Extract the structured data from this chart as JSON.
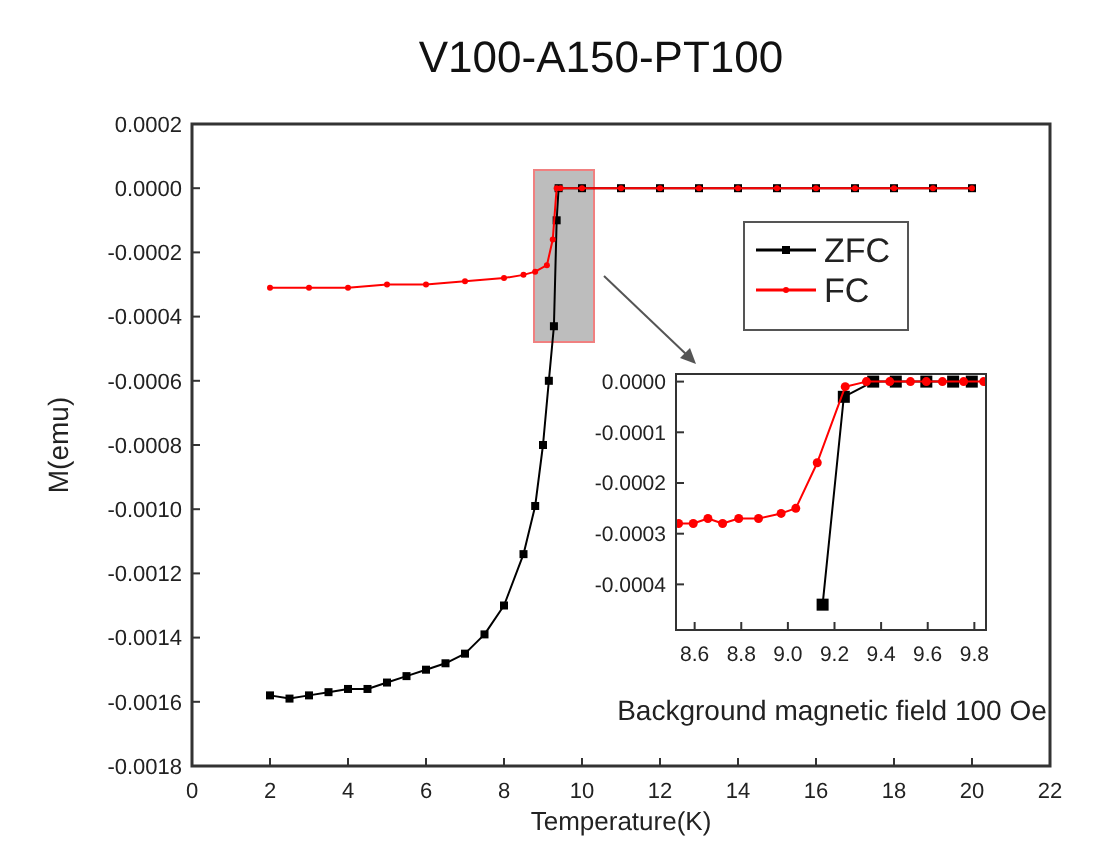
{
  "chart_data": [
    {
      "type": "line",
      "title": "V100-A150-PT100",
      "xlabel": "Temperature(K)",
      "ylabel": "M(emu)",
      "xlim": [
        0,
        22
      ],
      "xticks": [
        0,
        2,
        4,
        6,
        8,
        10,
        12,
        14,
        16,
        18,
        20,
        22
      ],
      "ylim": [
        -0.0018,
        0.0002
      ],
      "yticks": [
        {
          "value": -0.0018,
          "label": "-0.0018"
        },
        {
          "value": -0.0016,
          "label": "-0.0016"
        },
        {
          "value": -0.0014,
          "label": "-0.0014"
        },
        {
          "value": -0.0012,
          "label": "-0.0012"
        },
        {
          "value": -0.001,
          "label": "-0.0010"
        },
        {
          "value": -0.0008,
          "label": "-0.0008"
        },
        {
          "value": -0.0006,
          "label": "-0.0006"
        },
        {
          "value": -0.0004,
          "label": "-0.0004"
        },
        {
          "value": -0.0002,
          "label": "-0.0002"
        },
        {
          "value": 0,
          "label": "0.0000"
        },
        {
          "value": 0.0002,
          "label": "0.0002"
        }
      ],
      "legend": "top right",
      "annotations": [
        "Background magnetic field 100 Oe"
      ],
      "series": [
        {
          "name": "ZFC",
          "color": "#000000",
          "marker": "square",
          "x": [
            2,
            2.5,
            3,
            3.5,
            4,
            4.5,
            5,
            5.5,
            6,
            6.5,
            7,
            7.5,
            8,
            8.5,
            8.8,
            9.0,
            9.15,
            9.28,
            9.35,
            9.4,
            10,
            11,
            12,
            13,
            14,
            15,
            16,
            17,
            18,
            19,
            20
          ],
          "values": [
            -0.00158,
            -0.00159,
            -0.00158,
            -0.00157,
            -0.00156,
            -0.00156,
            -0.00154,
            -0.00152,
            -0.0015,
            -0.00148,
            -0.00145,
            -0.00139,
            -0.0013,
            -0.00114,
            -0.00099,
            -0.0008,
            -0.0006,
            -0.00043,
            -0.0001,
            0,
            0,
            0,
            0,
            0,
            0,
            0,
            0,
            0,
            0,
            0,
            0
          ]
        },
        {
          "name": "FC",
          "color": "#ff0000",
          "marker": "circle",
          "x": [
            2,
            3,
            4,
            5,
            6,
            7,
            8,
            8.5,
            8.8,
            9.1,
            9.25,
            9.35,
            9.45,
            10,
            11,
            12,
            13,
            14,
            15,
            16,
            17,
            18,
            19,
            20
          ],
          "values": [
            -0.00031,
            -0.00031,
            -0.00031,
            -0.0003,
            -0.0003,
            -0.00029,
            -0.00028,
            -0.00027,
            -0.00026,
            -0.00024,
            -0.00016,
            0,
            0,
            0,
            0,
            0,
            0,
            0,
            0,
            0,
            0,
            0,
            0,
            0
          ]
        }
      ]
    },
    {
      "type": "line",
      "xlim": [
        8.52,
        9.85
      ],
      "xticks": [
        8.6,
        8.8,
        {
          "value": 9.0,
          "label": "9.0"
        },
        9.2,
        9.4,
        9.6,
        9.8
      ],
      "ylim": [
        -0.00049,
        1.5e-05
      ],
      "yticks": [
        {
          "value": -0.0004,
          "label": "-0.0004"
        },
        {
          "value": -0.0003,
          "label": "-0.0003"
        },
        {
          "value": -0.0002,
          "label": "-0.0002"
        },
        {
          "value": -0.0001,
          "label": "-0.0001"
        },
        {
          "value": 0,
          "label": "0.0000"
        }
      ],
      "series": [
        {
          "color": "#000000",
          "marker": "square",
          "x": [
            9.149,
            9.24,
            9.366,
            9.463,
            9.594,
            9.709,
            9.789
          ],
          "values": [
            -0.00044,
            -3e-05,
            0,
            0,
            0,
            0,
            0
          ]
        },
        {
          "color": "#ff0000",
          "marker": "circle",
          "x": [
            8.531,
            8.594,
            8.657,
            8.72,
            8.789,
            8.874,
            8.971,
            9.034,
            9.126,
            9.246,
            9.337,
            9.437,
            9.526,
            9.594,
            9.663,
            9.754,
            9.84
          ],
          "values": [
            -0.00028,
            -0.00028,
            -0.00027,
            -0.00028,
            -0.00027,
            -0.00027,
            -0.00026,
            -0.00025,
            -0.00016,
            -1e-05,
            0,
            0,
            0,
            0,
            0,
            0,
            0
          ]
        }
      ]
    }
  ]
}
